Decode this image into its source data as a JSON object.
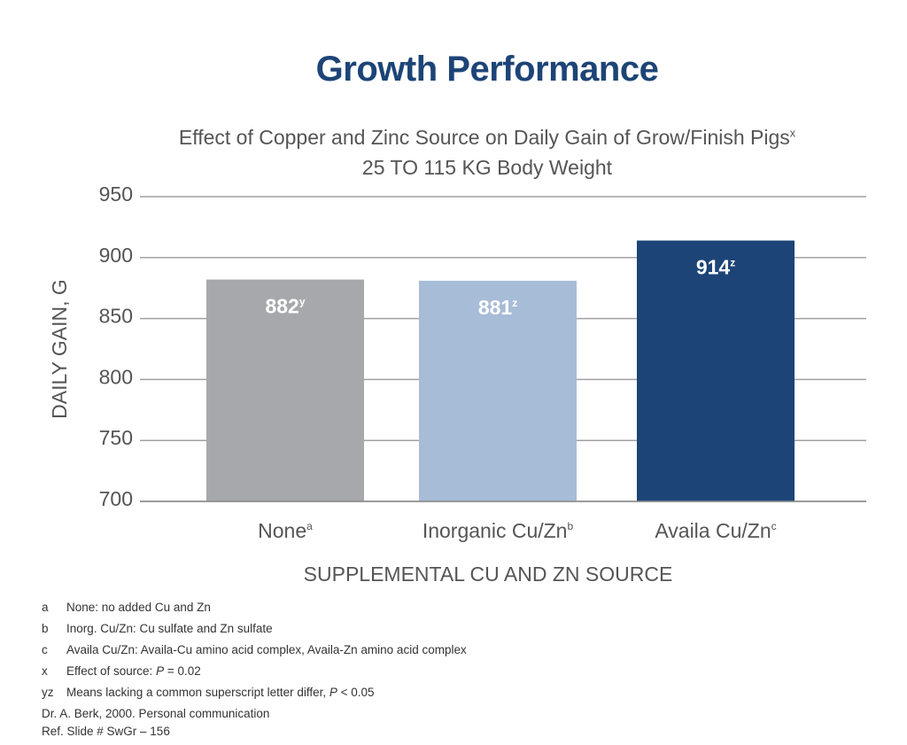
{
  "title": "Growth Performance",
  "subtitle_line1": "Effect of Copper and Zinc Source on Daily Gain of Grow/Finish Pigs",
  "subtitle_line1_sup": "x",
  "subtitle_line2": "25 TO 115 KG Body Weight",
  "chart_data": {
    "type": "bar",
    "ylabel": "DAILY GAIN, G",
    "xlabel": "SUPPLEMENTAL CU AND ZN SOURCE",
    "ylim": [
      700,
      950
    ],
    "yticks": [
      700,
      750,
      800,
      850,
      900,
      950
    ],
    "grid": true,
    "bars": [
      {
        "category": "None",
        "category_sup": "a",
        "value": 882,
        "label": "882",
        "label_sup": "y",
        "color": "#a6a8ab"
      },
      {
        "category": "Inorganic Cu/Zn",
        "category_sup": "b",
        "value": 881,
        "label": "881",
        "label_sup": "z",
        "color": "#a7bcd6"
      },
      {
        "category": "Availa Cu/Zn",
        "category_sup": "c",
        "value": 914,
        "label": "914",
        "label_sup": "z",
        "color": "#1d4477"
      }
    ],
    "gridline_color": "#a0a0a0"
  },
  "footnotes": [
    {
      "key": "a",
      "text": "None: no added Cu and Zn"
    },
    {
      "key": "b",
      "text": "Inorg. Cu/Zn: Cu sulfate and Zn sulfate"
    },
    {
      "key": "c",
      "text": "Availa Cu/Zn: Availa-Cu amino acid complex, Availa-Zn amino acid complex"
    },
    {
      "key": "x",
      "text_pre": "Effect of source: ",
      "text_italic": "P",
      "text_post": " = 0.02"
    },
    {
      "key": "yz",
      "text_pre": "Means lacking a common superscript letter differ, ",
      "text_italic": "P",
      "text_post": " < 0.05"
    }
  ],
  "source_lines": [
    "Dr. A. Berk, 2000. Personal communication",
    "Ref. Slide # SwGr – 156"
  ]
}
